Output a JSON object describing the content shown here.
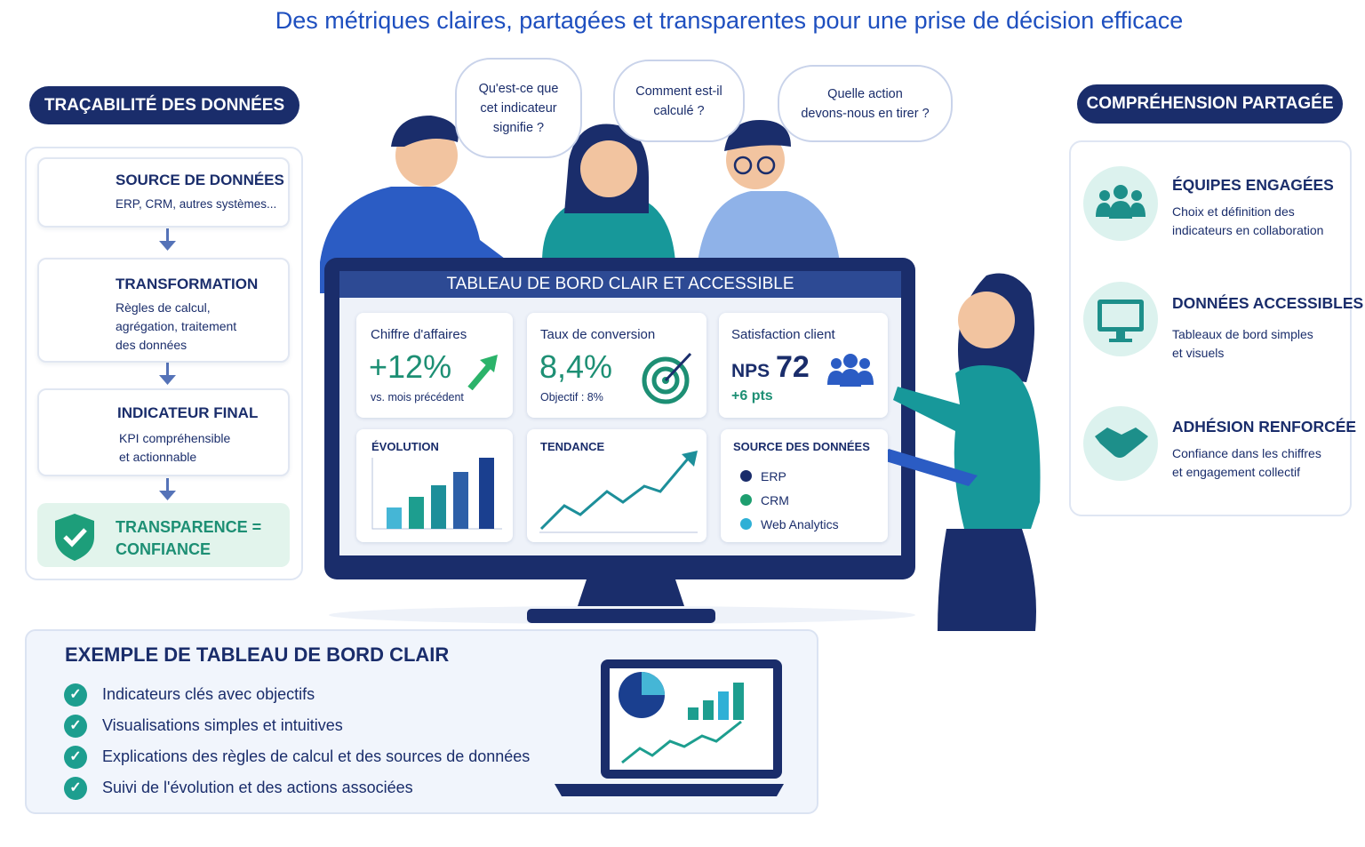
{
  "title": "Des métriques claires, partagées et transparentes pour une prise de décision efficace",
  "left": {
    "header": "TRAÇABILITÉ DES DONNÉES",
    "steps": [
      {
        "title": "SOURCE DE DONNÉES",
        "lines": [
          "ERP, CRM, autres systèmes..."
        ]
      },
      {
        "title": "TRANSFORMATION",
        "lines": [
          "Règles de calcul,",
          "agrégation, traitement",
          "des données"
        ]
      },
      {
        "title": "INDICATEUR FINAL",
        "lines": [
          "KPI compréhensible",
          "et actionnable"
        ]
      }
    ],
    "final": [
      "TRANSPARENCE =",
      "CONFIANCE"
    ]
  },
  "bubbles": [
    [
      "Qu'est-ce que",
      "cet indicateur",
      "signifie ?"
    ],
    [
      "Comment est-il",
      "calculé ?"
    ],
    [
      "Quelle action",
      "devons-nous en tirer ?"
    ]
  ],
  "dashboard": {
    "title": "TABLEAU DE BORD CLAIR ET ACCESSIBLE",
    "kpis": [
      {
        "label": "Chiffre d'affaires",
        "value": "+12%",
        "note": "vs. mois précédent"
      },
      {
        "label": "Taux de conversion",
        "value": "8,4%",
        "note": "Objectif : 8%"
      },
      {
        "label": "Satisfaction client",
        "prefix": "NPS",
        "value": "72",
        "note": "+6 pts"
      }
    ],
    "panels": {
      "evolution": "ÉVOLUTION",
      "trend": "TENDANCE",
      "sources": "SOURCE DES DONNÉES"
    },
    "legend": [
      "ERP",
      "CRM",
      "Web Analytics"
    ]
  },
  "right": {
    "header": "COMPRÉHENSION PARTAGÉE",
    "items": [
      {
        "title": "ÉQUIPES ENGAGÉES",
        "lines": [
          "Choix et définition des",
          "indicateurs en collaboration"
        ]
      },
      {
        "title": "DONNÉES ACCESSIBLES",
        "lines": [
          "Tableaux de bord simples",
          "et visuels"
        ]
      },
      {
        "title": "ADHÉSION RENFORCÉE",
        "lines": [
          "Confiance dans les chiffres",
          "et engagement collectif"
        ]
      }
    ]
  },
  "example": {
    "title": "EXEMPLE DE TABLEAU DE BORD CLAIR",
    "items": [
      "Indicateurs clés avec objectifs",
      "Visualisations simples et intuitives",
      "Explications des règles de calcul et des sources de données",
      "Suivi de l'évolution et des actions associées"
    ]
  }
}
